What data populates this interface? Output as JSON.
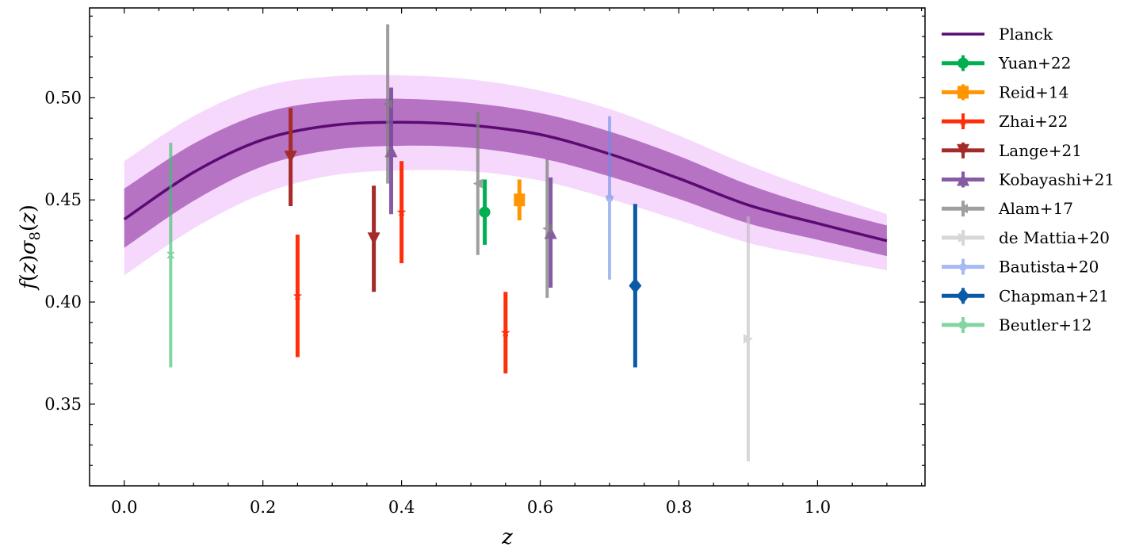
{
  "chart_data": {
    "type": "line",
    "xlabel": "z",
    "ylabel": "f(z)σ8(z)",
    "xlim": [
      -0.05,
      1.155
    ],
    "ylim": [
      0.31,
      0.544
    ],
    "grid": false,
    "legend_position": "outside-right",
    "x_ticks": [
      {
        "value": 0.0,
        "label": "0.0"
      },
      {
        "value": 0.2,
        "label": "0.2"
      },
      {
        "value": 0.4,
        "label": "0.4"
      },
      {
        "value": 0.6,
        "label": "0.6"
      },
      {
        "value": 0.8,
        "label": "0.8"
      },
      {
        "value": 1.0,
        "label": "1.0"
      }
    ],
    "y_ticks": [
      {
        "value": 0.35,
        "label": "0.35"
      },
      {
        "value": 0.4,
        "label": "0.40"
      },
      {
        "value": 0.45,
        "label": "0.45"
      },
      {
        "value": 0.5,
        "label": "0.50"
      }
    ],
    "model": {
      "name": "Planck",
      "color": "#5b0a73",
      "x": [
        0.0,
        0.1,
        0.2,
        0.3,
        0.4,
        0.5,
        0.6,
        0.7,
        0.8,
        0.9,
        1.0,
        1.1
      ],
      "y": [
        0.4405,
        0.4635,
        0.4795,
        0.4865,
        0.488,
        0.4865,
        0.482,
        0.4725,
        0.4605,
        0.4475,
        0.4385,
        0.43
      ],
      "band_1sigma": {
        "color": "#a050b0",
        "lower": [
          0.4265,
          0.4495,
          0.4665,
          0.4745,
          0.4765,
          0.4755,
          0.4705,
          0.4615,
          0.4505,
          0.4385,
          0.4305,
          0.4225
        ],
        "upper": [
          0.4555,
          0.4775,
          0.4925,
          0.4985,
          0.4995,
          0.4975,
          0.4925,
          0.4835,
          0.4715,
          0.4575,
          0.4465,
          0.4375
        ]
      },
      "band_2sigma": {
        "color": "#f5d8fc",
        "lower": [
          0.413,
          0.436,
          0.453,
          0.462,
          0.4645,
          0.464,
          0.4595,
          0.4505,
          0.44,
          0.429,
          0.422,
          0.4155
        ],
        "upper": [
          0.469,
          0.491,
          0.5055,
          0.5105,
          0.511,
          0.509,
          0.5035,
          0.4945,
          0.4815,
          0.467,
          0.4545,
          0.443
        ]
      }
    },
    "series": [
      {
        "name": "Yuan+22",
        "color": "#00b050",
        "alpha": 1.0,
        "marker": "circle",
        "lw": 5,
        "points": [
          {
            "x": 0.52,
            "y": 0.444,
            "lo": 0.428,
            "hi": 0.46
          }
        ]
      },
      {
        "name": "Reid+14",
        "color": "#ff9500",
        "alpha": 1.0,
        "marker": "square",
        "lw": 5,
        "points": [
          {
            "x": 0.57,
            "y": 0.45,
            "lo": 0.44,
            "hi": 0.46
          }
        ]
      },
      {
        "name": "Zhai+22",
        "color": "#ff2e0a",
        "alpha": 1.0,
        "marker": "star",
        "lw": 5,
        "points": [
          {
            "x": 0.25,
            "y": 0.403,
            "lo": 0.373,
            "hi": 0.433
          },
          {
            "x": 0.4,
            "y": 0.444,
            "lo": 0.419,
            "hi": 0.469
          },
          {
            "x": 0.55,
            "y": 0.385,
            "lo": 0.365,
            "hi": 0.405
          }
        ]
      },
      {
        "name": "Lange+21",
        "color": "#a52a2a",
        "alpha": 1.0,
        "marker": "triangle-down",
        "lw": 5,
        "points": [
          {
            "x": 0.24,
            "y": 0.471,
            "lo": 0.447,
            "hi": 0.495
          },
          {
            "x": 0.36,
            "y": 0.431,
            "lo": 0.405,
            "hi": 0.457
          }
        ]
      },
      {
        "name": "Kobayashi+21",
        "color": "#7b4a9a",
        "alpha": 0.9,
        "marker": "triangle-up",
        "lw": 5,
        "points": [
          {
            "x": 0.385,
            "y": 0.474,
            "lo": 0.443,
            "hi": 0.505
          },
          {
            "x": 0.615,
            "y": 0.434,
            "lo": 0.407,
            "hi": 0.461
          }
        ]
      },
      {
        "name": "Alam+17",
        "color": "#808080",
        "alpha": 0.75,
        "marker": "triangle-left",
        "lw": 4,
        "points": [
          {
            "x": 0.38,
            "y": 0.497,
            "lo": 0.458,
            "hi": 0.536
          },
          {
            "x": 0.51,
            "y": 0.458,
            "lo": 0.423,
            "hi": 0.493
          },
          {
            "x": 0.61,
            "y": 0.436,
            "lo": 0.402,
            "hi": 0.47
          }
        ]
      },
      {
        "name": "de Mattia+20",
        "color": "#bdbdbd",
        "alpha": 0.6,
        "marker": "triangle-right",
        "lw": 4,
        "points": [
          {
            "x": 0.9,
            "y": 0.382,
            "lo": 0.322,
            "hi": 0.442
          }
        ]
      },
      {
        "name": "Bautista+20",
        "color": "#6a8fe8",
        "alpha": 0.6,
        "marker": "pentagon",
        "lw": 4,
        "points": [
          {
            "x": 0.7,
            "y": 0.451,
            "lo": 0.411,
            "hi": 0.491
          }
        ]
      },
      {
        "name": "Chapman+21",
        "color": "#0b5aa8",
        "alpha": 1.0,
        "marker": "diamond",
        "lw": 5,
        "points": [
          {
            "x": 0.737,
            "y": 0.408,
            "lo": 0.368,
            "hi": 0.448
          }
        ]
      },
      {
        "name": "Beutler+12",
        "color": "#40c070",
        "alpha": 0.65,
        "marker": "x",
        "lw": 4,
        "points": [
          {
            "x": 0.067,
            "y": 0.423,
            "lo": 0.368,
            "hi": 0.478
          }
        ]
      }
    ]
  }
}
